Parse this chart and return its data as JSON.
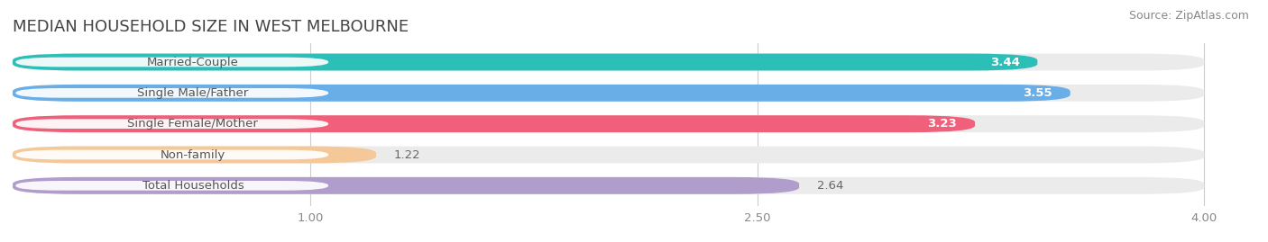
{
  "title": "MEDIAN HOUSEHOLD SIZE IN WEST MELBOURNE",
  "source": "Source: ZipAtlas.com",
  "categories": [
    "Married-Couple",
    "Single Male/Father",
    "Single Female/Mother",
    "Non-family",
    "Total Households"
  ],
  "values": [
    3.44,
    3.55,
    3.23,
    1.22,
    2.64
  ],
  "bar_colors": [
    "#2bbfb8",
    "#6aaee8",
    "#f0607a",
    "#f5c89a",
    "#b09dcc"
  ],
  "bar_bg_color": "#ebebeb",
  "label_bg_color": "#ffffff",
  "value_colors_inside": [
    true,
    true,
    true,
    false,
    false
  ],
  "xlim_max": 4.0,
  "xticks": [
    1.0,
    2.5,
    4.0
  ],
  "title_fontsize": 13,
  "source_fontsize": 9,
  "label_fontsize": 9.5,
  "value_fontsize": 9.5,
  "bg_color": "#ffffff"
}
